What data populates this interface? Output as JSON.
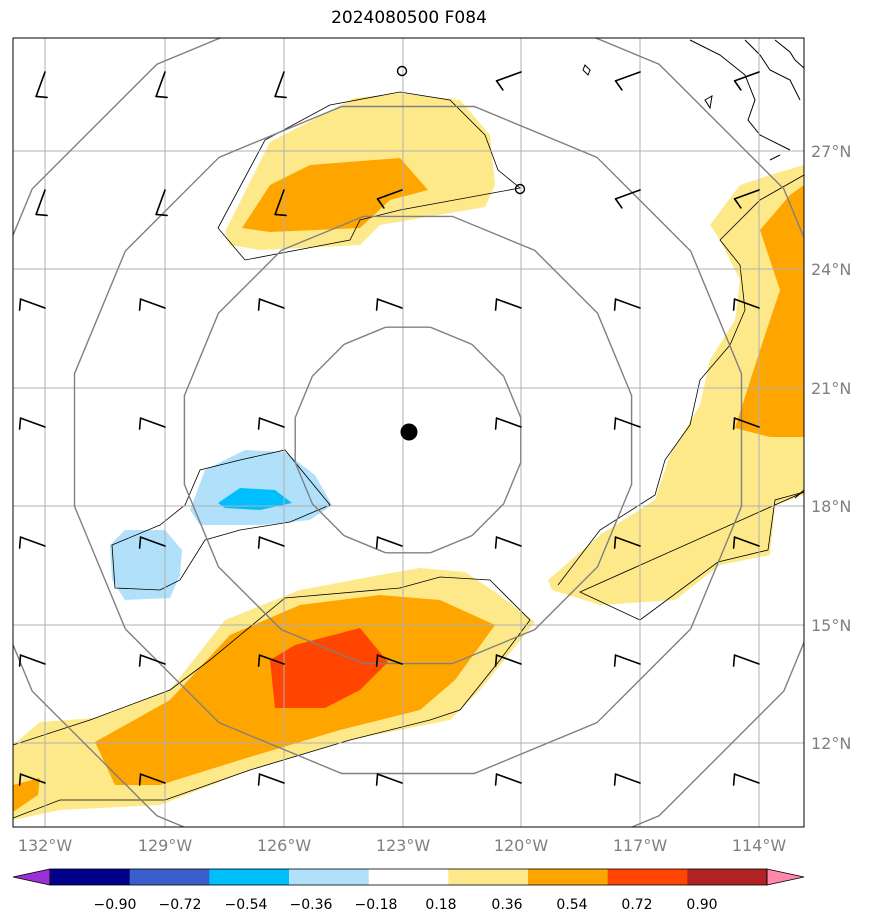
{
  "title": "2024080500 F084",
  "map": {
    "lon_ticks": [
      "132°W",
      "129°W",
      "126°W",
      "123°W",
      "120°W",
      "117°W",
      "114°W"
    ],
    "lat_ticks": [
      "27°N",
      "24°N",
      "21°N",
      "18°N",
      "15°N",
      "12°N"
    ],
    "grid": true,
    "range_rings": 4,
    "center_marker": "storm-center-dot"
  },
  "colorbar": {
    "labels": [
      "−0.90",
      "−0.72",
      "−0.54",
      "−0.36",
      "−0.18",
      "0.18",
      "0.36",
      "0.54",
      "0.72",
      "0.90"
    ],
    "colors": [
      "#9b30d6",
      "#00008b",
      "#3a5fcd",
      "#00bfff",
      "#b0e0fa",
      "#ffffff",
      "#fde98a",
      "#ffa500",
      "#ff4500",
      "#b22222",
      "#ff88aa"
    ],
    "extend": "both"
  },
  "fill_colors": {
    "light_yellow": "#fde98a",
    "orange": "#ffa500",
    "red_orange": "#ff4500",
    "light_blue": "#b0e0fa",
    "deep_sky_blue": "#00bfff"
  }
}
